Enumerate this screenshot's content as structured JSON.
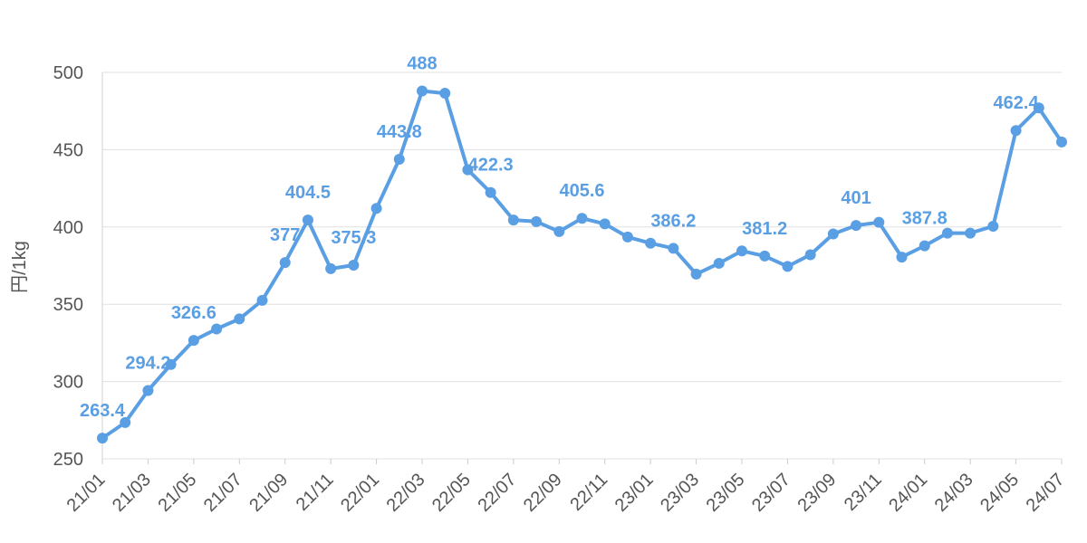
{
  "chart_data": {
    "type": "line",
    "title": "",
    "xlabel": "",
    "ylabel": "円/1kg",
    "ylim": [
      250,
      500
    ],
    "yticks": [
      250,
      300,
      350,
      400,
      450,
      500
    ],
    "grid": true,
    "legend": "none",
    "color": "#5a9fe3",
    "x": [
      "21/01",
      "21/02",
      "21/03",
      "21/04",
      "21/05",
      "21/06",
      "21/07",
      "21/08",
      "21/09",
      "21/10",
      "21/11",
      "21/12",
      "22/01",
      "22/02",
      "22/03",
      "22/04",
      "22/05",
      "22/06",
      "22/07",
      "22/08",
      "22/09",
      "22/10",
      "22/11",
      "22/12",
      "23/01",
      "23/02",
      "23/03",
      "23/04",
      "23/05",
      "23/06",
      "23/07",
      "23/08",
      "23/09",
      "23/10",
      "23/11",
      "23/12",
      "24/01",
      "24/02",
      "24/03",
      "24/04",
      "24/05",
      "24/06",
      "24/07"
    ],
    "xtick_labels": [
      "21/01",
      "21/03",
      "21/05",
      "21/07",
      "21/09",
      "21/11",
      "22/01",
      "22/03",
      "22/05",
      "22/07",
      "22/09",
      "22/11",
      "23/01",
      "23/03",
      "23/05",
      "23/07",
      "23/09",
      "23/11",
      "24/01",
      "24/03",
      "24/05",
      "24/07"
    ],
    "series": [
      {
        "values": [
          263.4,
          273.5,
          294.2,
          311,
          326.6,
          334,
          340.5,
          352.5,
          377,
          404.5,
          373,
          375.3,
          412,
          443.8,
          488,
          486.5,
          437,
          422.3,
          404.5,
          403.5,
          397,
          405.6,
          402,
          393.5,
          389.5,
          386.2,
          369.5,
          376.5,
          384.5,
          381.2,
          374.5,
          382,
          395.5,
          401,
          403,
          380.5,
          387.8,
          396,
          396,
          400.5,
          462.4,
          477,
          455
        ]
      }
    ],
    "data_labels": [
      {
        "index": 0,
        "text": "263.4"
      },
      {
        "index": 2,
        "text": "294.2"
      },
      {
        "index": 4,
        "text": "326.6"
      },
      {
        "index": 8,
        "text": "377"
      },
      {
        "index": 9,
        "text": "404.5"
      },
      {
        "index": 11,
        "text": "375.3"
      },
      {
        "index": 13,
        "text": "443.8"
      },
      {
        "index": 14,
        "text": "488"
      },
      {
        "index": 17,
        "text": "422.3"
      },
      {
        "index": 21,
        "text": "405.6"
      },
      {
        "index": 25,
        "text": "386.2"
      },
      {
        "index": 29,
        "text": "381.2"
      },
      {
        "index": 33,
        "text": "401"
      },
      {
        "index": 36,
        "text": "387.8"
      },
      {
        "index": 40,
        "text": "462.4"
      }
    ]
  }
}
